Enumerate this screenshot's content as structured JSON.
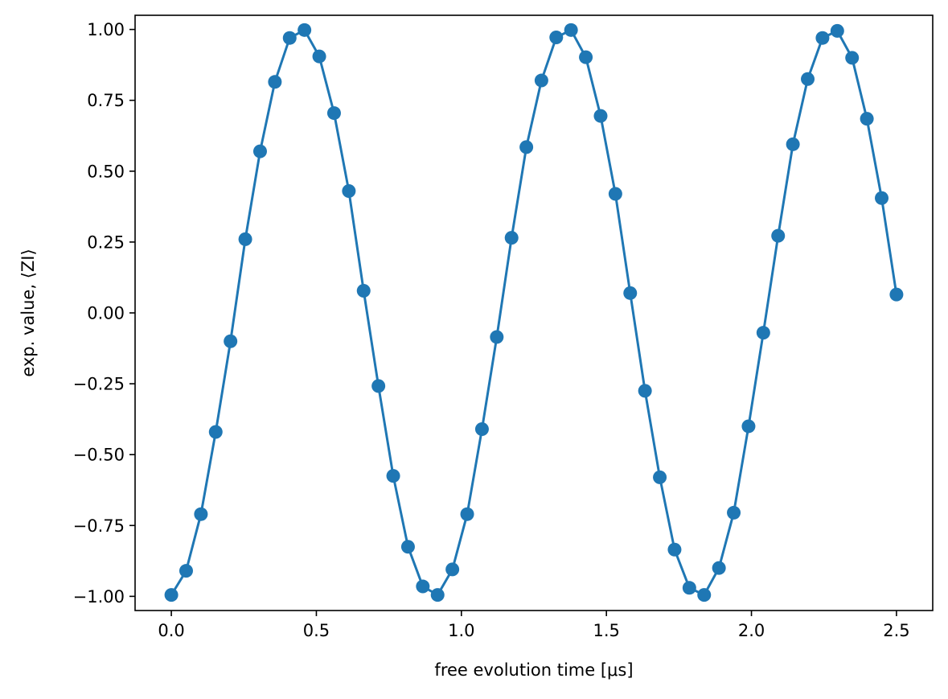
{
  "chart_data": {
    "type": "line",
    "title": "",
    "xlabel": "free evolution time [μs]",
    "ylabel": "exp. value, ⟨ZI⟩",
    "xlim": [
      -0.125,
      2.625
    ],
    "ylim": [
      -1.05,
      1.05
    ],
    "xticks": [
      0.0,
      0.5,
      1.0,
      1.5,
      2.0,
      2.5
    ],
    "xtick_labels": [
      "0.0",
      "0.5",
      "1.0",
      "1.5",
      "2.0",
      "2.5"
    ],
    "yticks": [
      -1.0,
      -0.75,
      -0.5,
      -0.25,
      0.0,
      0.25,
      0.5,
      0.75,
      1.0
    ],
    "ytick_labels": [
      "−1.00",
      "−0.75",
      "−0.50",
      "−0.25",
      "0.00",
      "0.25",
      "0.50",
      "0.75",
      "1.00"
    ],
    "grid": false,
    "series": [
      {
        "color": "#1f77b4",
        "marker": "circle",
        "x": [
          0.0,
          0.051,
          0.102,
          0.153,
          0.204,
          0.255,
          0.306,
          0.357,
          0.408,
          0.459,
          0.51,
          0.561,
          0.612,
          0.663,
          0.714,
          0.765,
          0.816,
          0.867,
          0.918,
          0.969,
          1.02,
          1.071,
          1.122,
          1.173,
          1.224,
          1.276,
          1.327,
          1.378,
          1.429,
          1.48,
          1.531,
          1.582,
          1.633,
          1.684,
          1.735,
          1.786,
          1.837,
          1.888,
          1.939,
          1.99,
          2.041,
          2.092,
          2.143,
          2.194,
          2.245,
          2.296,
          2.347,
          2.398,
          2.449,
          2.5
        ],
        "y": [
          -0.995,
          -0.91,
          -0.71,
          -0.42,
          -0.1,
          0.26,
          0.57,
          0.815,
          0.97,
          0.998,
          0.905,
          0.705,
          0.43,
          0.078,
          -0.258,
          -0.575,
          -0.825,
          -0.965,
          -0.995,
          -0.905,
          -0.71,
          -0.41,
          -0.085,
          0.265,
          0.585,
          0.82,
          0.972,
          0.998,
          0.902,
          0.695,
          0.42,
          0.07,
          -0.275,
          -0.58,
          -0.835,
          -0.97,
          -0.995,
          -0.9,
          -0.705,
          -0.4,
          -0.07,
          0.272,
          0.595,
          0.825,
          0.97,
          0.995,
          0.9,
          0.685,
          0.405,
          0.065
        ]
      }
    ]
  }
}
